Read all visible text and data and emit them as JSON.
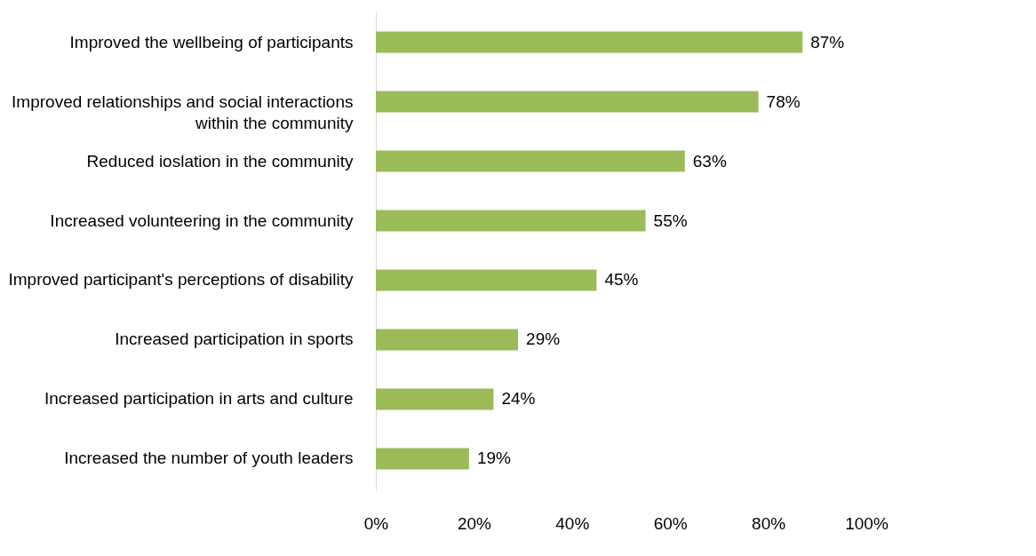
{
  "chart_data": {
    "type": "bar",
    "orientation": "horizontal",
    "categories": [
      "Improved the wellbeing of participants",
      "Improved relationships and social interactions within the community",
      "Reduced ioslation in the community",
      "Increased volunteering in the community",
      "Improved participant's perceptions of disability",
      "Increased participation in sports",
      "Increased participation in arts and culture",
      "Increased the number of youth leaders"
    ],
    "values": [
      87,
      78,
      63,
      55,
      45,
      29,
      24,
      19
    ],
    "value_labels": [
      "87%",
      "78%",
      "63%",
      "55%",
      "45%",
      "29%",
      "24%",
      "19%"
    ],
    "color": "#9bbb59",
    "xlim": [
      0,
      100
    ],
    "xticks": [
      {
        "value": 0,
        "label": "0%"
      },
      {
        "value": 20,
        "label": "20%"
      },
      {
        "value": 40,
        "label": "40%"
      },
      {
        "value": 60,
        "label": "60%"
      },
      {
        "value": 80,
        "label": "80%"
      },
      {
        "value": 100,
        "label": "100%"
      }
    ],
    "grid": false
  }
}
